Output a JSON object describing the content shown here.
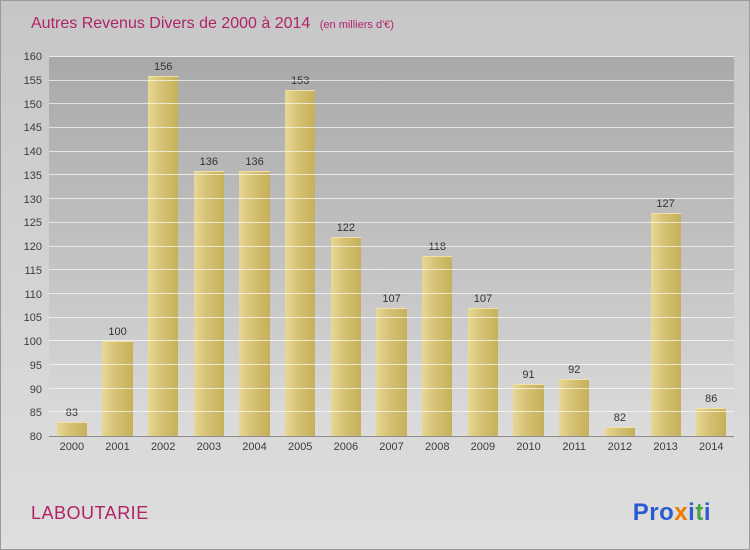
{
  "header": {
    "title": "Autres Revenus Divers de 2000 à 2014",
    "subtitle": "(en milliers d'€)"
  },
  "footer": {
    "company": "LABOUTARIE"
  },
  "logo": {
    "name": "Proxiti",
    "letters": [
      {
        "ch": "P",
        "color": "#2a5bd0"
      },
      {
        "ch": "r",
        "color": "#2a5bd0"
      },
      {
        "ch": "o",
        "color": "#2a5bd0"
      },
      {
        "ch": "x",
        "color": "#f07a00"
      },
      {
        "ch": "i",
        "color": "#2a5bd0"
      },
      {
        "ch": "t",
        "color": "#49a147"
      },
      {
        "ch": "i",
        "color": "#2a5bd0"
      }
    ]
  },
  "colors": {
    "accent_pink": "#b02467",
    "bar_gold": "#d5c174",
    "value_label": "#333333",
    "tick_label": "#3c3c3c"
  },
  "chart_data": {
    "type": "bar",
    "title": "Autres Revenus Divers de 2000 à 2014",
    "subtitle": "(en milliers d'€)",
    "xlabel": "",
    "ylabel": "",
    "categories": [
      "2000",
      "2001",
      "2002",
      "2003",
      "2004",
      "2005",
      "2006",
      "2007",
      "2008",
      "2009",
      "2010",
      "2011",
      "2012",
      "2013",
      "2014"
    ],
    "values": [
      83,
      100,
      156,
      136,
      136,
      153,
      122,
      107,
      118,
      107,
      91,
      92,
      82,
      127,
      86
    ],
    "ylim": [
      80,
      160
    ],
    "ytick_step": 5,
    "grid": true,
    "legend": "none"
  }
}
